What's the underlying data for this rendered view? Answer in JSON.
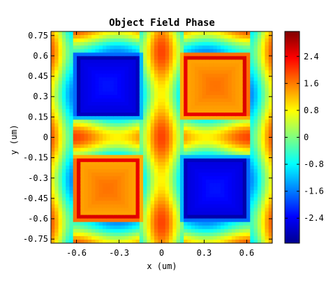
{
  "chart_data": {
    "type": "heatmap",
    "title": "Object Field Phase",
    "xlabel": "x (um)",
    "ylabel": "y (um)",
    "xlim": [
      -0.78,
      0.78
    ],
    "ylim": [
      -0.78,
      0.78
    ],
    "x_ticks": [
      -0.6,
      -0.3,
      0,
      0.3,
      0.6
    ],
    "x_tick_labels": [
      "-0.6",
      "-0.3",
      "0",
      "0.3",
      "0.6"
    ],
    "y_ticks": [
      0.75,
      0.6,
      0.45,
      0.3,
      0.15,
      0,
      -0.15,
      -0.3,
      -0.45,
      -0.6,
      -0.75
    ],
    "y_tick_labels": [
      "0.75",
      "0.6",
      "0.45",
      "0.3",
      "0.15",
      "0",
      "-0.15",
      "-0.3",
      "-0.45",
      "-0.6",
      "-0.75"
    ],
    "colorbar": {
      "colormap": "jet",
      "range": [
        -3.14159,
        3.14159
      ],
      "ticks": [
        2.4,
        1.6,
        0.8,
        0,
        -0.8,
        -1.6,
        -2.4
      ],
      "tick_labels": [
        "2.4",
        "1.6",
        "0.8",
        "0",
        "-0.8",
        "-1.6",
        "-2.4"
      ]
    },
    "regions": [
      {
        "label": "upper-left square",
        "x_range": [
          -0.58,
          -0.18
        ],
        "y_range": [
          0.18,
          0.58
        ],
        "phase": -2.4
      },
      {
        "label": "upper-right square",
        "x_range": [
          0.18,
          0.58
        ],
        "y_range": [
          0.18,
          0.58
        ],
        "phase": 1.5
      },
      {
        "label": "lower-left square",
        "x_range": [
          -0.58,
          -0.18
        ],
        "y_range": [
          -0.58,
          -0.18
        ],
        "phase": 1.5
      },
      {
        "label": "lower-right square",
        "x_range": [
          0.18,
          0.58
        ],
        "y_range": [
          -0.58,
          -0.18
        ],
        "phase": -2.4
      }
    ]
  }
}
